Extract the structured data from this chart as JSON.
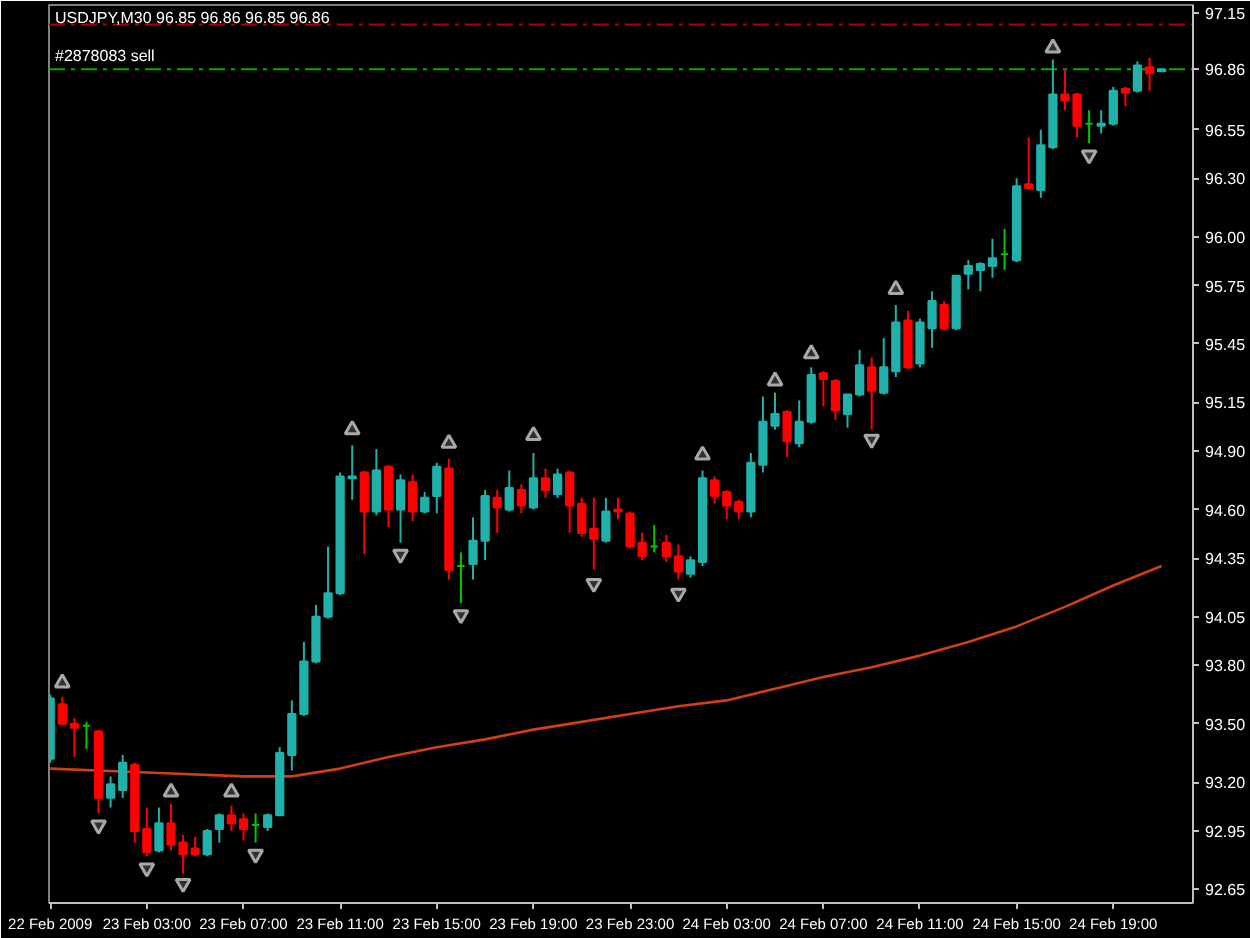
{
  "chart_data": {
    "type": "candlestick",
    "title": "USDJPY,M30  96.85 96.86 96.85 96.86",
    "x": [
      "2009-02-22T23:00",
      "2009-02-22T23:30",
      "2009-02-23T00:00",
      "2009-02-23T00:30",
      "2009-02-23T01:00",
      "2009-02-23T01:30",
      "2009-02-23T02:00",
      "2009-02-23T02:30",
      "2009-02-23T03:00",
      "2009-02-23T03:30",
      "2009-02-23T04:00",
      "2009-02-23T04:30",
      "2009-02-23T05:00",
      "2009-02-23T05:30",
      "2009-02-23T06:00",
      "2009-02-23T06:30",
      "2009-02-23T07:00",
      "2009-02-23T07:30",
      "2009-02-23T08:00",
      "2009-02-23T08:30",
      "2009-02-23T09:00",
      "2009-02-23T09:30",
      "2009-02-23T10:00",
      "2009-02-23T10:30",
      "2009-02-23T11:00",
      "2009-02-23T11:30",
      "2009-02-23T12:00",
      "2009-02-23T12:30",
      "2009-02-23T13:00",
      "2009-02-23T13:30",
      "2009-02-23T14:00",
      "2009-02-23T14:30",
      "2009-02-23T15:00",
      "2009-02-23T15:30",
      "2009-02-23T16:00",
      "2009-02-23T16:30",
      "2009-02-23T17:00",
      "2009-02-23T17:30",
      "2009-02-23T18:00",
      "2009-02-23T18:30",
      "2009-02-23T19:00",
      "2009-02-23T19:30",
      "2009-02-23T20:00",
      "2009-02-23T20:30",
      "2009-02-23T21:00",
      "2009-02-23T21:30",
      "2009-02-23T22:00",
      "2009-02-23T22:30",
      "2009-02-23T23:00",
      "2009-02-23T23:30",
      "2009-02-24T00:00",
      "2009-02-24T00:30",
      "2009-02-24T01:00",
      "2009-02-24T01:30",
      "2009-02-24T02:00",
      "2009-02-24T02:30",
      "2009-02-24T03:00",
      "2009-02-24T03:30",
      "2009-02-24T04:00",
      "2009-02-24T04:30",
      "2009-02-24T05:00",
      "2009-02-24T05:30",
      "2009-02-24T06:00",
      "2009-02-24T06:30",
      "2009-02-24T07:00",
      "2009-02-24T07:30",
      "2009-02-24T08:00",
      "2009-02-24T08:30",
      "2009-02-24T09:00",
      "2009-02-24T09:30",
      "2009-02-24T10:00",
      "2009-02-24T10:30",
      "2009-02-24T11:00",
      "2009-02-24T11:30",
      "2009-02-24T12:00",
      "2009-02-24T12:30",
      "2009-02-24T13:00",
      "2009-02-24T13:30",
      "2009-02-24T14:00",
      "2009-02-24T14:30",
      "2009-02-24T15:00",
      "2009-02-24T15:30",
      "2009-02-24T16:00",
      "2009-02-24T16:30",
      "2009-02-24T17:00",
      "2009-02-24T17:30",
      "2009-02-24T18:00",
      "2009-02-24T18:30",
      "2009-02-24T19:00",
      "2009-02-24T19:30",
      "2009-02-24T20:00",
      "2009-02-24T20:30",
      "2009-02-24T21:00"
    ],
    "ohlc": [
      [
        93.32,
        93.65,
        93.3,
        93.63
      ],
      [
        93.6,
        93.64,
        93.49,
        93.5
      ],
      [
        93.5,
        93.53,
        93.33,
        93.48
      ],
      [
        93.49,
        93.51,
        93.37,
        93.49
      ],
      [
        93.46,
        93.47,
        93.04,
        93.12
      ],
      [
        93.12,
        93.23,
        93.07,
        93.19
      ],
      [
        93.16,
        93.34,
        93.12,
        93.3
      ],
      [
        93.29,
        93.3,
        92.89,
        92.95
      ],
      [
        92.96,
        93.07,
        92.82,
        92.84
      ],
      [
        92.85,
        93.07,
        92.84,
        92.99
      ],
      [
        92.99,
        93.09,
        92.85,
        92.88
      ],
      [
        92.89,
        92.93,
        92.73,
        92.83
      ],
      [
        92.86,
        92.92,
        92.82,
        92.83
      ],
      [
        92.83,
        92.96,
        92.82,
        92.95
      ],
      [
        92.96,
        93.04,
        92.89,
        93.03
      ],
      [
        93.03,
        93.08,
        92.95,
        92.99
      ],
      [
        93.01,
        93.04,
        92.9,
        92.96
      ],
      [
        92.98,
        93.04,
        92.89,
        92.98
      ],
      [
        92.97,
        93.04,
        92.95,
        93.03
      ],
      [
        93.03,
        93.38,
        93.03,
        93.35
      ],
      [
        93.34,
        93.62,
        93.26,
        93.55
      ],
      [
        93.55,
        93.92,
        93.54,
        93.82
      ],
      [
        93.82,
        94.11,
        93.81,
        94.05
      ],
      [
        94.05,
        94.41,
        94.04,
        94.17
      ],
      [
        94.17,
        94.79,
        94.16,
        94.77
      ],
      [
        94.76,
        94.93,
        94.65,
        94.77
      ],
      [
        94.79,
        94.8,
        94.37,
        94.59
      ],
      [
        94.59,
        94.91,
        94.57,
        94.8
      ],
      [
        94.82,
        94.83,
        94.51,
        94.6
      ],
      [
        94.6,
        94.78,
        94.43,
        94.75
      ],
      [
        94.74,
        94.78,
        94.54,
        94.59
      ],
      [
        94.59,
        94.69,
        94.58,
        94.66
      ],
      [
        94.67,
        94.84,
        94.58,
        94.82
      ],
      [
        94.81,
        94.86,
        94.24,
        94.29
      ],
      [
        94.31,
        94.38,
        94.12,
        94.31
      ],
      [
        94.32,
        94.56,
        94.24,
        94.44
      ],
      [
        94.44,
        94.7,
        94.34,
        94.67
      ],
      [
        94.66,
        94.7,
        94.48,
        94.61
      ],
      [
        94.6,
        94.8,
        94.59,
        94.71
      ],
      [
        94.7,
        94.73,
        94.58,
        94.62
      ],
      [
        94.61,
        94.89,
        94.6,
        94.76
      ],
      [
        94.76,
        94.81,
        94.66,
        94.7
      ],
      [
        94.68,
        94.81,
        94.66,
        94.78
      ],
      [
        94.79,
        94.8,
        94.48,
        94.62
      ],
      [
        94.63,
        94.66,
        94.46,
        94.48
      ],
      [
        94.5,
        94.66,
        94.29,
        94.45
      ],
      [
        94.44,
        94.66,
        94.43,
        94.59
      ],
      [
        94.6,
        94.66,
        94.55,
        94.59
      ],
      [
        94.58,
        94.59,
        94.4,
        94.41
      ],
      [
        94.43,
        94.48,
        94.34,
        94.36
      ],
      [
        94.41,
        94.52,
        94.38,
        94.41
      ],
      [
        94.43,
        94.47,
        94.33,
        94.36
      ],
      [
        94.36,
        94.42,
        94.24,
        94.28
      ],
      [
        94.27,
        94.36,
        94.25,
        94.34
      ],
      [
        94.33,
        94.8,
        94.31,
        94.76
      ],
      [
        94.75,
        94.77,
        94.63,
        94.67
      ],
      [
        94.69,
        94.7,
        94.55,
        94.62
      ],
      [
        94.64,
        94.65,
        94.55,
        94.59
      ],
      [
        94.59,
        94.89,
        94.56,
        94.84
      ],
      [
        94.83,
        95.18,
        94.79,
        95.05
      ],
      [
        95.03,
        95.2,
        95.01,
        95.09
      ],
      [
        95.1,
        95.11,
        94.87,
        94.95
      ],
      [
        94.94,
        95.16,
        94.92,
        95.05
      ],
      [
        95.05,
        95.33,
        95.04,
        95.29
      ],
      [
        95.3,
        95.31,
        95.13,
        95.27
      ],
      [
        95.26,
        95.27,
        95.06,
        95.11
      ],
      [
        95.09,
        95.19,
        95.02,
        95.19
      ],
      [
        95.19,
        95.42,
        95.18,
        95.34
      ],
      [
        95.33,
        95.38,
        95.01,
        95.21
      ],
      [
        95.2,
        95.48,
        95.19,
        95.33
      ],
      [
        95.31,
        95.65,
        95.28,
        95.56
      ],
      [
        95.57,
        95.62,
        95.32,
        95.33
      ],
      [
        95.35,
        95.58,
        95.33,
        95.56
      ],
      [
        95.53,
        95.72,
        95.43,
        95.67
      ],
      [
        95.65,
        95.67,
        95.52,
        95.53
      ],
      [
        95.53,
        95.8,
        95.52,
        95.8
      ],
      [
        95.81,
        95.88,
        95.73,
        95.85
      ],
      [
        95.83,
        95.87,
        95.72,
        95.86
      ],
      [
        95.85,
        95.99,
        95.79,
        95.89
      ],
      [
        95.91,
        96.04,
        95.83,
        95.91
      ],
      [
        95.88,
        96.3,
        95.87,
        96.26
      ],
      [
        96.27,
        96.51,
        96.24,
        96.25
      ],
      [
        96.24,
        96.55,
        96.2,
        96.47
      ],
      [
        96.46,
        96.91,
        96.45,
        96.73
      ],
      [
        96.73,
        96.86,
        96.65,
        96.7
      ],
      [
        96.73,
        96.74,
        96.51,
        96.57
      ],
      [
        96.58,
        96.65,
        96.48,
        96.58
      ],
      [
        96.57,
        96.65,
        96.53,
        96.58
      ],
      [
        96.58,
        96.77,
        96.57,
        96.75
      ],
      [
        96.76,
        96.77,
        96.67,
        96.74
      ],
      [
        96.75,
        96.9,
        96.74,
        96.88
      ],
      [
        96.87,
        96.92,
        96.75,
        96.84
      ],
      [
        96.85,
        96.86,
        96.85,
        96.86
      ]
    ],
    "colors": [
      "#20b2aa",
      "#ff0000",
      "#ff0000",
      "#00c800",
      "#ff0000",
      "#20b2aa",
      "#20b2aa",
      "#ff0000",
      "#ff0000",
      "#20b2aa",
      "#ff0000",
      "#ff0000",
      "#ff0000",
      "#20b2aa",
      "#20b2aa",
      "#ff0000",
      "#ff0000",
      "#00c800",
      "#20b2aa",
      "#20b2aa",
      "#20b2aa",
      "#20b2aa",
      "#20b2aa",
      "#20b2aa",
      "#20b2aa",
      "#20b2aa",
      "#ff0000",
      "#20b2aa",
      "#ff0000",
      "#20b2aa",
      "#ff0000",
      "#20b2aa",
      "#20b2aa",
      "#ff0000",
      "#00c800",
      "#20b2aa",
      "#20b2aa",
      "#ff0000",
      "#20b2aa",
      "#ff0000",
      "#20b2aa",
      "#ff0000",
      "#20b2aa",
      "#ff0000",
      "#ff0000",
      "#ff0000",
      "#20b2aa",
      "#ff0000",
      "#ff0000",
      "#ff0000",
      "#00c800",
      "#ff0000",
      "#ff0000",
      "#20b2aa",
      "#20b2aa",
      "#ff0000",
      "#ff0000",
      "#ff0000",
      "#20b2aa",
      "#20b2aa",
      "#20b2aa",
      "#ff0000",
      "#20b2aa",
      "#20b2aa",
      "#ff0000",
      "#ff0000",
      "#20b2aa",
      "#20b2aa",
      "#ff0000",
      "#20b2aa",
      "#20b2aa",
      "#ff0000",
      "#20b2aa",
      "#20b2aa",
      "#ff0000",
      "#20b2aa",
      "#20b2aa",
      "#20b2aa",
      "#20b2aa",
      "#00c800",
      "#20b2aa",
      "#ff0000",
      "#20b2aa",
      "#20b2aa",
      "#ff0000",
      "#ff0000",
      "#00c800",
      "#20b2aa",
      "#20b2aa",
      "#ff0000",
      "#20b2aa",
      "#ff0000",
      "#20b2aa"
    ],
    "series": [
      {
        "type": "line",
        "color": "#d04010",
        "x": [
          "2009-02-22T23:00",
          "2009-02-23T03:00",
          "2009-02-23T07:00",
          "2009-02-23T09:00",
          "2009-02-23T11:00",
          "2009-02-23T13:00",
          "2009-02-23T15:00",
          "2009-02-23T17:00",
          "2009-02-23T19:00",
          "2009-02-23T21:00",
          "2009-02-23T23:00",
          "2009-02-24T01:00",
          "2009-02-24T03:00",
          "2009-02-24T05:00",
          "2009-02-24T07:00",
          "2009-02-24T09:00",
          "2009-02-24T11:00",
          "2009-02-24T13:00",
          "2009-02-24T15:00",
          "2009-02-24T17:00",
          "2009-02-24T19:00",
          "2009-02-24T21:00"
        ],
        "values": [
          93.27,
          93.25,
          93.23,
          93.23,
          93.27,
          93.33,
          93.38,
          93.42,
          93.47,
          93.51,
          93.55,
          93.59,
          93.62,
          93.68,
          93.74,
          93.79,
          93.85,
          93.92,
          94.0,
          94.1,
          94.21,
          94.31
        ]
      },
      {
        "type": "scatter",
        "color": "#a8a8a8",
        "marker": "triangle",
        "x": [
          "2009-02-22T23:30",
          "2009-02-23T04:00",
          "2009-02-23T06:30",
          "2009-02-23T11:30",
          "2009-02-23T15:30",
          "2009-02-23T19:00",
          "2009-02-24T02:00",
          "2009-02-24T05:00",
          "2009-02-24T06:30",
          "2009-02-24T10:00",
          "2009-02-24T16:30"
        ],
        "values": [
          93.71,
          93.15,
          93.15,
          95.01,
          94.94,
          94.98,
          94.88,
          95.26,
          95.4,
          95.73,
          96.97
        ]
      },
      {
        "type": "scatter",
        "color": "#a8a8a8",
        "x": [
          "2009-02-23T01:00",
          "2009-02-23T03:00",
          "2009-02-23T04:30",
          "2009-02-23T07:30",
          "2009-02-23T13:30",
          "2009-02-23T16:00",
          "2009-02-23T21:30",
          "2009-02-24T01:00",
          "2009-02-24T09:00",
          "2009-02-24T18:00"
        ],
        "values": [
          92.98,
          92.76,
          92.68,
          92.83,
          94.37,
          94.06,
          94.22,
          94.17,
          94.96,
          96.42
        ]
      }
    ],
    "xlim": [
      "2009-02-22T22:57",
      "2009-02-24T22:18"
    ],
    "ylim": [
      92.58,
      97.19
    ],
    "xticks": [
      {
        "value": "2009-02-22T23:00",
        "label": "22 Feb 2009"
      },
      {
        "value": "2009-02-23T03:00",
        "label": "23 Feb 03:00"
      },
      {
        "value": "2009-02-23T07:00",
        "label": "23 Feb 07:00"
      },
      {
        "value": "2009-02-23T11:00",
        "label": "23 Feb 11:00"
      },
      {
        "value": "2009-02-23T15:00",
        "label": "23 Feb 15:00"
      },
      {
        "value": "2009-02-23T19:00",
        "label": "23 Feb 19:00"
      },
      {
        "value": "2009-02-23T23:00",
        "label": "23 Feb 23:00"
      },
      {
        "value": "2009-02-24T03:00",
        "label": "24 Feb 03:00"
      },
      {
        "value": "2009-02-24T07:00",
        "label": "24 Feb 07:00"
      },
      {
        "value": "2009-02-24T11:00",
        "label": "24 Feb 11:00"
      },
      {
        "value": "2009-02-24T15:00",
        "label": "24 Feb 15:00"
      },
      {
        "value": "2009-02-24T19:00",
        "label": "24 Feb 19:00"
      }
    ],
    "yticks": [
      97.15,
      96.86,
      96.55,
      {
        "value": 96.3,
        "label": "96.30"
      },
      {
        "value": 96.0,
        "label": "96.00"
      },
      95.75,
      95.45,
      95.15,
      {
        "value": 94.9,
        "label": "94.90"
      },
      {
        "value": 94.6,
        "label": "94.60"
      },
      94.35,
      94.05,
      {
        "value": 93.8,
        "label": "93.80"
      },
      {
        "value": 93.5,
        "label": "93.50"
      },
      {
        "value": 93.2,
        "label": "93.20"
      },
      92.95,
      92.65
    ],
    "ref_lines": [
      {
        "axis": "y",
        "value": 97.09,
        "color": "#b00000",
        "line_style": "dashdot"
      },
      {
        "axis": "y",
        "value": 96.86,
        "label": "#2878083 sell",
        "color": "#00b000",
        "line_style": "dashdot"
      }
    ]
  }
}
